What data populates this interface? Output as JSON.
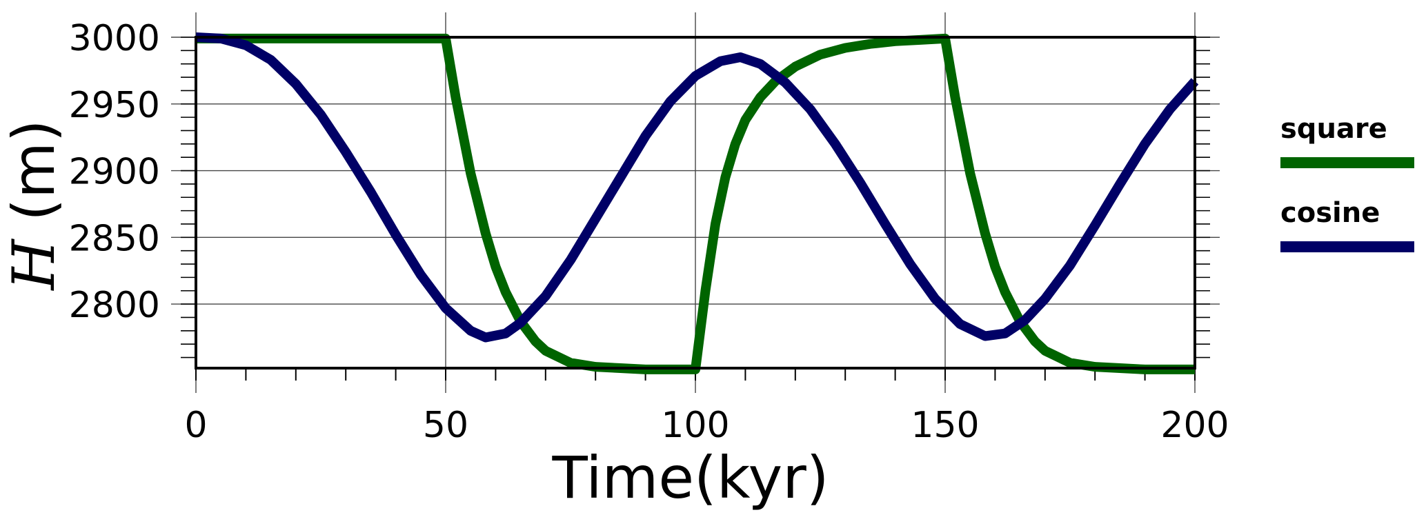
{
  "chart_data": {
    "type": "line",
    "xlabel": "Time(kyr)",
    "ylabel_var": "H",
    "ylabel_unit": "(m)",
    "xlim": [
      0,
      200
    ],
    "ylim": [
      2752,
      3000
    ],
    "xticks": [
      0,
      50,
      100,
      150,
      200
    ],
    "xtick_labels": [
      "0",
      "50",
      "100",
      "150",
      "200"
    ],
    "yticks": [
      2800,
      2850,
      2900,
      2950,
      3000
    ],
    "ytick_labels": [
      "2800",
      "2850",
      "2900",
      "2950",
      "3000"
    ],
    "grid": true,
    "legend_position": "right",
    "series": [
      {
        "name": "square",
        "color": "#006400",
        "x": [
          0,
          10,
          20,
          30,
          40,
          50,
          52,
          55,
          58,
          60,
          62,
          65,
          68,
          70,
          75,
          80,
          85,
          90,
          95,
          100,
          102,
          104,
          106,
          108,
          110,
          113,
          116,
          120,
          125,
          130,
          135,
          140,
          145,
          150,
          152,
          155,
          158,
          160,
          162,
          165,
          168,
          170,
          175,
          180,
          185,
          190,
          195,
          200
        ],
        "y": [
          2999,
          2999,
          2999,
          2999,
          2999,
          2999,
          2955,
          2898,
          2853,
          2828,
          2809,
          2787,
          2772,
          2765,
          2756,
          2753,
          2752,
          2751,
          2751,
          2751,
          2810,
          2860,
          2895,
          2920,
          2938,
          2955,
          2967,
          2978,
          2987,
          2992,
          2995,
          2997,
          2998,
          2999,
          2955,
          2898,
          2853,
          2828,
          2809,
          2787,
          2772,
          2765,
          2756,
          2753,
          2752,
          2751,
          2751,
          2751
        ]
      },
      {
        "name": "cosine",
        "color": "#000066",
        "x": [
          0,
          5,
          10,
          15,
          20,
          25,
          30,
          35,
          40,
          45,
          50,
          55,
          58,
          62,
          65,
          70,
          75,
          80,
          85,
          90,
          95,
          100,
          105,
          109,
          113,
          118,
          123,
          128,
          133,
          138,
          143,
          148,
          153,
          158,
          162,
          166,
          170,
          175,
          180,
          185,
          190,
          195,
          200
        ],
        "y": [
          3000,
          2999,
          2994,
          2983,
          2965,
          2942,
          2914,
          2884,
          2852,
          2822,
          2797,
          2780,
          2775,
          2778,
          2786,
          2806,
          2833,
          2864,
          2895,
          2926,
          2952,
          2971,
          2982,
          2985,
          2980,
          2966,
          2946,
          2920,
          2891,
          2860,
          2830,
          2804,
          2785,
          2776,
          2778,
          2788,
          2804,
          2829,
          2859,
          2890,
          2920,
          2946,
          2967
        ]
      }
    ]
  }
}
